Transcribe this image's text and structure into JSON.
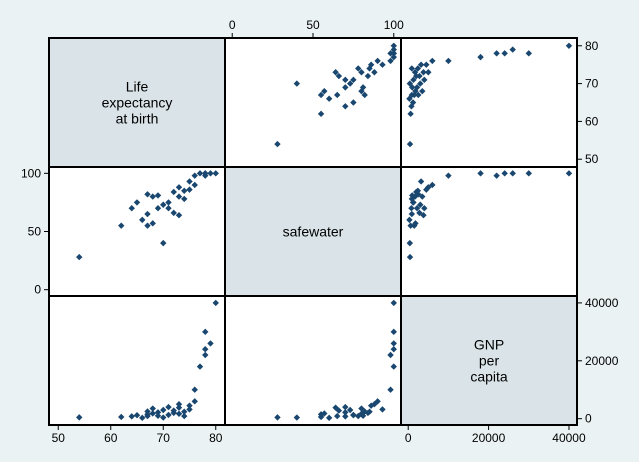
{
  "chart_data": {
    "type": "scatter-matrix",
    "variables": [
      {
        "key": "lexp",
        "label_lines": [
          "Life",
          "expectancy",
          "at birth"
        ],
        "range": [
          49,
          81
        ],
        "ticks": [
          50,
          60,
          70,
          80
        ]
      },
      {
        "key": "safewater",
        "label_lines": [
          "safewater"
        ],
        "range": [
          -2,
          102
        ],
        "ticks": [
          0,
          50,
          100
        ]
      },
      {
        "key": "gnp",
        "label_lines": [
          "GNP",
          "per",
          "capita"
        ],
        "range": [
          -800,
          41000
        ],
        "ticks": [
          0,
          20000,
          40000
        ]
      }
    ],
    "axis_placement": {
      "top": [
        1
      ],
      "bottom": [
        0,
        2
      ],
      "left": [
        1
      ],
      "right": [
        0,
        2
      ]
    },
    "tick_labels": {
      "lexp": [
        "50",
        "60",
        "70",
        "80"
      ],
      "safewater": [
        "0",
        "50",
        "100"
      ],
      "gnp": [
        "0",
        "20000",
        "40000"
      ]
    },
    "observations": [
      {
        "lexp": 54,
        "safewater": 28,
        "gnp": 450
      },
      {
        "lexp": 62,
        "safewater": 55,
        "gnp": 600
      },
      {
        "lexp": 64,
        "safewater": 70,
        "gnp": 800
      },
      {
        "lexp": 65,
        "safewater": 75,
        "gnp": 1200
      },
      {
        "lexp": 66,
        "safewater": 60,
        "gnp": 300
      },
      {
        "lexp": 67,
        "safewater": 55,
        "gnp": 1500
      },
      {
        "lexp": 67,
        "safewater": 82,
        "gnp": 2500
      },
      {
        "lexp": 67,
        "safewater": 65,
        "gnp": 900
      },
      {
        "lexp": 68,
        "safewater": 80,
        "gnp": 3500
      },
      {
        "lexp": 68,
        "safewater": 57,
        "gnp": 1800
      },
      {
        "lexp": 69,
        "safewater": 81,
        "gnp": 1000
      },
      {
        "lexp": 69,
        "safewater": 70,
        "gnp": 2200
      },
      {
        "lexp": 70,
        "safewater": 40,
        "gnp": 400
      },
      {
        "lexp": 70,
        "safewater": 73,
        "gnp": 3000
      },
      {
        "lexp": 71,
        "safewater": 75,
        "gnp": 1300
      },
      {
        "lexp": 71,
        "safewater": 70,
        "gnp": 4000
      },
      {
        "lexp": 72,
        "safewater": 84,
        "gnp": 2000
      },
      {
        "lexp": 72,
        "safewater": 66,
        "gnp": 2800
      },
      {
        "lexp": 73,
        "safewater": 80,
        "gnp": 1700
      },
      {
        "lexp": 73,
        "safewater": 64,
        "gnp": 3800
      },
      {
        "lexp": 73,
        "safewater": 88,
        "gnp": 5000
      },
      {
        "lexp": 74,
        "safewater": 85,
        "gnp": 2400
      },
      {
        "lexp": 74,
        "safewater": 78,
        "gnp": 900
      },
      {
        "lexp": 75,
        "safewater": 93,
        "gnp": 3200
      },
      {
        "lexp": 75,
        "safewater": 86,
        "gnp": 4500
      },
      {
        "lexp": 76,
        "safewater": 90,
        "gnp": 6000
      },
      {
        "lexp": 76,
        "safewater": 98,
        "gnp": 10000
      },
      {
        "lexp": 77,
        "safewater": 100,
        "gnp": 18000
      },
      {
        "lexp": 78,
        "safewater": 98,
        "gnp": 22000
      },
      {
        "lexp": 78,
        "safewater": 100,
        "gnp": 24000
      },
      {
        "lexp": 79,
        "safewater": 100,
        "gnp": 26000
      },
      {
        "lexp": 78,
        "safewater": 100,
        "gnp": 30000
      },
      {
        "lexp": 80,
        "safewater": 100,
        "gnp": 40000
      }
    ]
  }
}
